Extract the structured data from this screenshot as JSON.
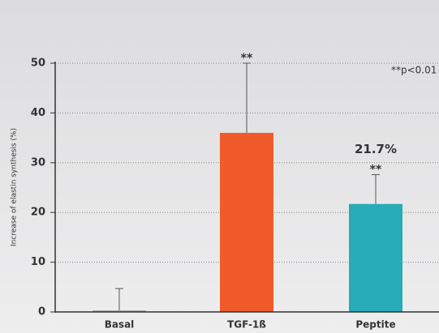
{
  "chart_data": {
    "type": "bar",
    "y_axis_label": "Increase of elastin synthesis (%)",
    "categories": [
      "Basal",
      "TGF-1ß",
      "Peptite"
    ],
    "values": [
      0.3,
      36,
      21.7
    ],
    "errors": [
      4.4,
      14,
      5.9
    ],
    "value_labels": [
      null,
      null,
      "21.7%"
    ],
    "significance": [
      null,
      "**",
      "**"
    ],
    "note": "**p<0.01",
    "colors": [
      "#a3a3a3",
      "#f15a29",
      "#27abb9"
    ],
    "ylim": [
      0,
      50
    ],
    "yticks": [
      0,
      10,
      20,
      30,
      40,
      50
    ],
    "grid": true
  }
}
